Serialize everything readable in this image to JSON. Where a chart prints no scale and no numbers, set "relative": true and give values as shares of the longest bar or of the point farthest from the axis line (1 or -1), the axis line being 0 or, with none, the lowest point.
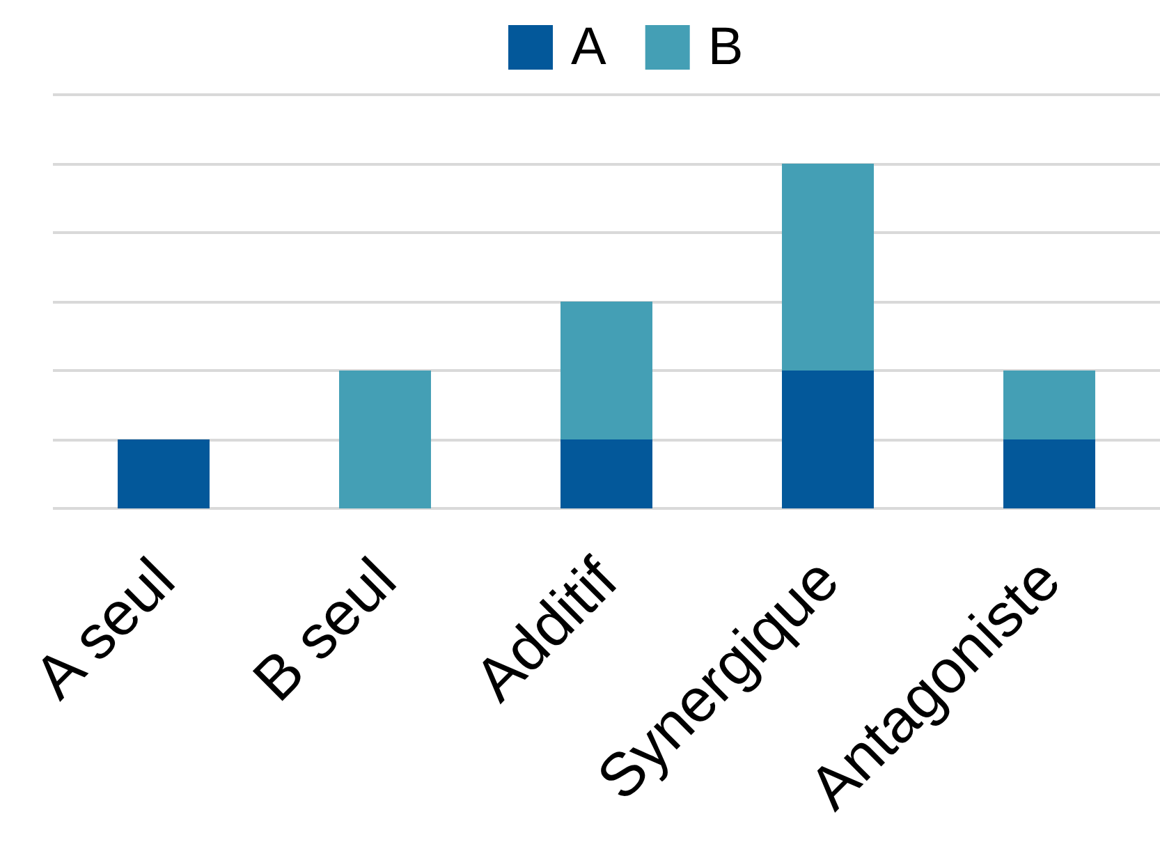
{
  "chart_data": {
    "type": "bar",
    "stacked": true,
    "relative": true,
    "categories": [
      "A seul",
      "B seul",
      "Additif",
      "Synergique",
      "Antagoniste"
    ],
    "series": [
      {
        "name": "A",
        "color": "#03589a",
        "values": [
          0.2,
          null,
          0.2,
          0.4,
          0.2
        ]
      },
      {
        "name": "B",
        "color": "#449fb5",
        "values": [
          null,
          0.4,
          0.4,
          0.6,
          0.2
        ]
      }
    ],
    "grid": "y",
    "legend": "top"
  }
}
